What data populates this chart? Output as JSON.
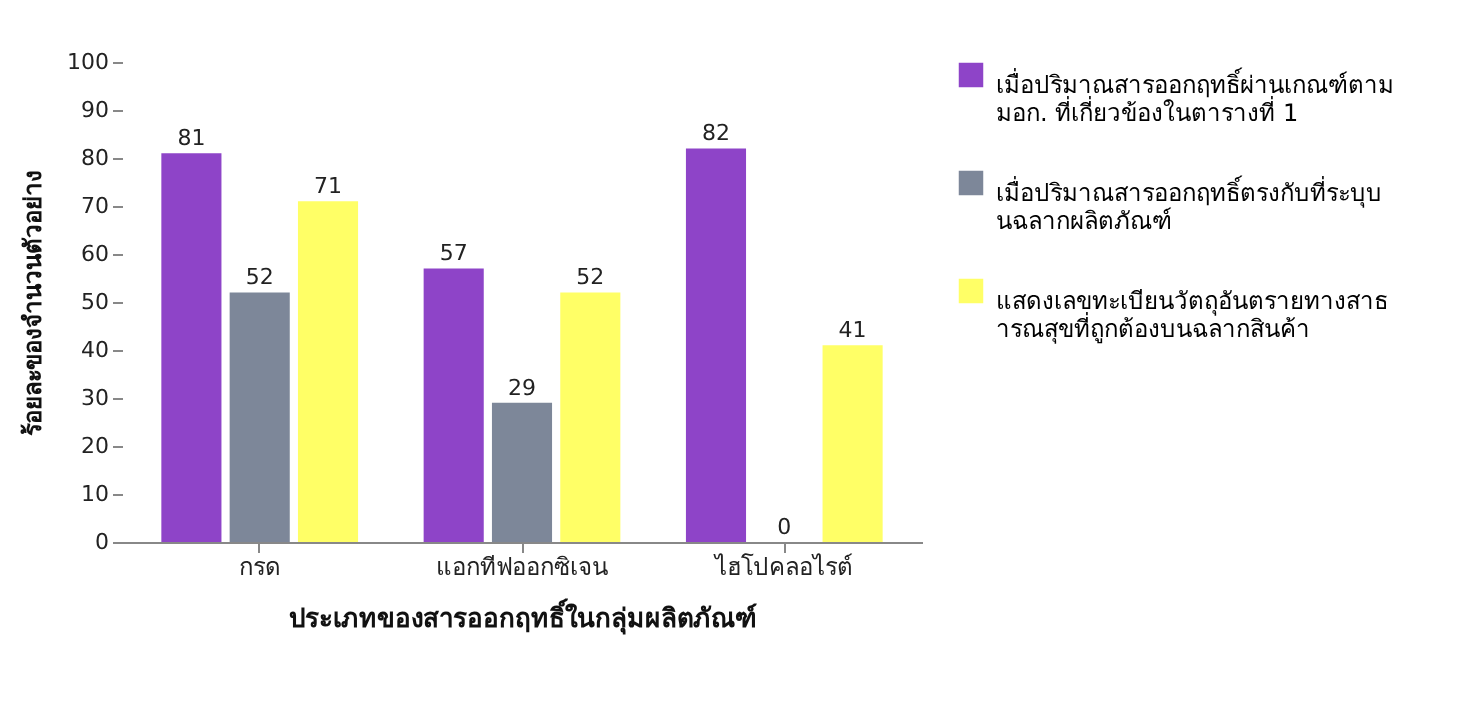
{
  "chart_data": {
    "type": "bar",
    "xlabel": "ประเภทของสารออกฤทธิ์ในกลุ่มผลิตภัณฑ์",
    "ylabel": "ร้อยละของจำนวนตัวอย่าง",
    "categories": [
      "กรด",
      "แอกทีฟออกซิเจน",
      "ไฮโปคลอไรต์"
    ],
    "series": [
      {
        "name": "เมื่อปริมาณสารออกฤทธิ์ผ่านเกณฑ์ตาม มอก. ที่เกี่ยวข้องในตารางที่ 1",
        "color": "#8e44c8",
        "values": [
          81,
          57,
          82
        ]
      },
      {
        "name": "เมื่อปริมาณสารออกฤทธิ์ตรงกับที่ระบุบนฉลากผลิตภัณฑ์",
        "color": "#7d8799",
        "values": [
          52,
          29,
          0
        ]
      },
      {
        "name": "แสดงเลขทะเบียนวัตถุอันตรายทางสาธารณสุขที่ถูกต้องบนฉลากสินค้า",
        "color": "#ffff66",
        "values": [
          71,
          52,
          41
        ]
      }
    ],
    "ylim": [
      0,
      100
    ],
    "yticks": [
      0,
      10,
      20,
      30,
      40,
      50,
      60,
      70,
      80,
      90,
      100
    ],
    "data_labels": true,
    "grid": false,
    "legend": "right"
  }
}
